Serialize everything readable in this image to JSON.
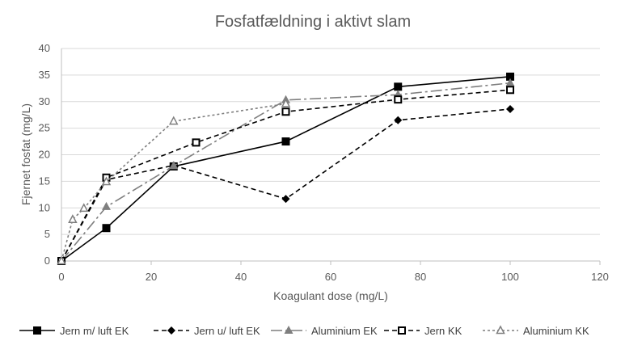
{
  "chart_data": {
    "type": "line",
    "title": "Fosfatfældning i aktivt slam",
    "xlabel": "Koagulant dose (mg/L)",
    "ylabel": "Fjernet fosfat (mg/L)",
    "xlim": [
      0,
      120
    ],
    "ylim": [
      0,
      40
    ],
    "xticks": [
      0,
      20,
      40,
      60,
      80,
      100,
      120
    ],
    "yticks": [
      0,
      5,
      10,
      15,
      20,
      25,
      30,
      35,
      40
    ],
    "grid": "horizontal",
    "legend_position": "bottom",
    "series": [
      {
        "name": "Jern m/ luft EK",
        "color": "#000000",
        "line": "solid",
        "marker": "square-filled",
        "points": [
          [
            0,
            0
          ],
          [
            10,
            6.2
          ],
          [
            25,
            17.8
          ],
          [
            50,
            22.5
          ],
          [
            75,
            32.8
          ],
          [
            100,
            34.7
          ]
        ]
      },
      {
        "name": "Jern u/ luft EK",
        "color": "#000000",
        "line": "dashed",
        "marker": "diamond-filled",
        "points": [
          [
            0,
            0
          ],
          [
            10,
            15.3
          ],
          [
            25,
            18.0
          ],
          [
            50,
            11.7
          ],
          [
            75,
            26.5
          ],
          [
            100,
            28.6
          ]
        ]
      },
      {
        "name": "Aluminium EK",
        "color": "#7f7f7f",
        "line": "longdash",
        "marker": "triangle-filled",
        "points": [
          [
            0,
            0
          ],
          [
            10,
            10.2
          ],
          [
            25,
            17.9
          ],
          [
            50,
            30.3
          ],
          [
            75,
            31.3
          ],
          [
            100,
            33.5
          ]
        ]
      },
      {
        "name": "Jern KK",
        "color": "#000000",
        "line": "dashed",
        "marker": "square-open",
        "points": [
          [
            0,
            0
          ],
          [
            10,
            15.7
          ],
          [
            30,
            22.3
          ],
          [
            50,
            28.1
          ],
          [
            75,
            30.4
          ],
          [
            100,
            32.2
          ]
        ]
      },
      {
        "name": "Aluminium KK",
        "color": "#7f7f7f",
        "line": "shortdash",
        "marker": "triangle-open",
        "points": [
          [
            0,
            0
          ],
          [
            2.5,
            7.8
          ],
          [
            5,
            9.9
          ],
          [
            10,
            14.9
          ],
          [
            25,
            26.3
          ],
          [
            50,
            29.6
          ]
        ]
      }
    ]
  }
}
